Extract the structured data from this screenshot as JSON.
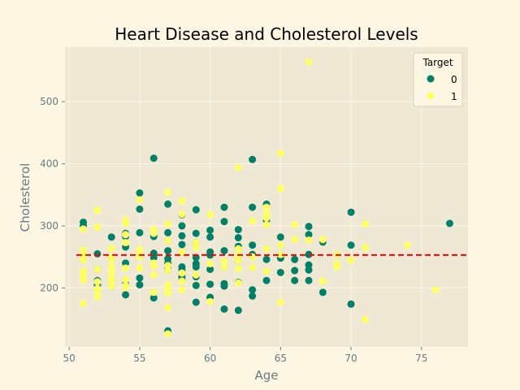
{
  "chart_data": {
    "type": "scatter",
    "title": "Heart Disease and Cholesterol Levels",
    "xlabel": "Age",
    "ylabel": "Cholesterol",
    "xlim": [
      49.7,
      78.3
    ],
    "ylim": [
      105,
      588
    ],
    "xticks": [
      50,
      55,
      60,
      65,
      70,
      75
    ],
    "yticks": [
      200,
      300,
      400,
      500
    ],
    "grid": true,
    "legend": {
      "title": "Target",
      "placement": "top-right"
    },
    "reference_line": {
      "y": 253,
      "color": "#ff0000",
      "style": "dashed"
    },
    "colors": {
      "background": "#fdf6e3",
      "plot_area": "#eee8d5",
      "grid": "#fdf6e3",
      "axis_text": "#657b83"
    },
    "series": [
      {
        "name": "0",
        "color": "#008066",
        "points": [
          [
            51,
            306
          ],
          [
            51,
            300
          ],
          [
            52,
            255
          ],
          [
            52,
            230
          ],
          [
            52,
            212
          ],
          [
            52,
            205
          ],
          [
            53,
            282
          ],
          [
            53,
            203
          ],
          [
            54,
            288
          ],
          [
            54,
            283
          ],
          [
            54,
            266
          ],
          [
            54,
            240
          ],
          [
            54,
            206
          ],
          [
            54,
            189
          ],
          [
            55,
            353
          ],
          [
            55,
            327
          ],
          [
            55,
            289
          ],
          [
            55,
            216
          ],
          [
            55,
            205
          ],
          [
            56,
            409
          ],
          [
            56,
            288
          ],
          [
            56,
            283
          ],
          [
            56,
            256
          ],
          [
            56,
            249
          ],
          [
            56,
            184
          ],
          [
            57,
            335
          ],
          [
            57,
            289
          ],
          [
            57,
            276
          ],
          [
            57,
            260
          ],
          [
            57,
            247
          ],
          [
            57,
            240
          ],
          [
            57,
            232
          ],
          [
            57,
            229
          ],
          [
            57,
            131
          ],
          [
            58,
            318
          ],
          [
            58,
            300
          ],
          [
            58,
            284
          ],
          [
            58,
            270
          ],
          [
            58,
            258
          ],
          [
            58,
            234
          ],
          [
            58,
            229
          ],
          [
            58,
            224
          ],
          [
            58,
            218
          ],
          [
            58,
            213
          ],
          [
            59,
            326
          ],
          [
            59,
            288
          ],
          [
            59,
            273
          ],
          [
            59,
            249
          ],
          [
            59,
            239
          ],
          [
            59,
            234
          ],
          [
            59,
            218
          ],
          [
            59,
            204
          ],
          [
            59,
            177
          ],
          [
            60,
            293
          ],
          [
            60,
            282
          ],
          [
            60,
            258
          ],
          [
            60,
            253
          ],
          [
            60,
            230
          ],
          [
            60,
            206
          ],
          [
            60,
            185
          ],
          [
            61,
            330
          ],
          [
            61,
            307
          ],
          [
            61,
            260
          ],
          [
            61,
            234
          ],
          [
            61,
            207
          ],
          [
            61,
            203
          ],
          [
            61,
            166
          ],
          [
            62,
            294
          ],
          [
            62,
            281
          ],
          [
            62,
            267
          ],
          [
            62,
            263
          ],
          [
            62,
            244
          ],
          [
            62,
            209
          ],
          [
            62,
            164
          ],
          [
            63,
            407
          ],
          [
            63,
            330
          ],
          [
            63,
            269
          ],
          [
            63,
            254
          ],
          [
            63,
            197
          ],
          [
            63,
            187
          ],
          [
            64,
            335
          ],
          [
            64,
            309
          ],
          [
            64,
            246
          ],
          [
            64,
            212
          ],
          [
            65,
            282
          ],
          [
            65,
            254
          ],
          [
            65,
            248
          ],
          [
            65,
            225
          ],
          [
            66,
            246
          ],
          [
            66,
            228
          ],
          [
            66,
            212
          ],
          [
            67,
            299
          ],
          [
            67,
            286
          ],
          [
            67,
            254
          ],
          [
            67,
            237
          ],
          [
            67,
            229
          ],
          [
            67,
            212
          ],
          [
            68,
            274
          ],
          [
            68,
            193
          ],
          [
            69,
            254
          ],
          [
            70,
            322
          ],
          [
            70,
            269
          ],
          [
            70,
            174
          ],
          [
            77,
            304
          ]
        ]
      },
      {
        "name": "1",
        "color": "#ffff66",
        "points": [
          [
            51,
            295
          ],
          [
            51,
            261
          ],
          [
            51,
            256
          ],
          [
            51,
            250
          ],
          [
            51,
            245
          ],
          [
            51,
            227
          ],
          [
            51,
            220
          ],
          [
            51,
            213
          ],
          [
            51,
            175
          ],
          [
            52,
            325
          ],
          [
            52,
            298
          ],
          [
            52,
            230
          ],
          [
            52,
            210
          ],
          [
            52,
            199
          ],
          [
            52,
            196
          ],
          [
            52,
            186
          ],
          [
            53,
            264
          ],
          [
            53,
            250
          ],
          [
            53,
            246
          ],
          [
            53,
            234
          ],
          [
            53,
            226
          ],
          [
            53,
            216
          ],
          [
            53,
            211
          ],
          [
            53,
            203
          ],
          [
            54,
            309
          ],
          [
            54,
            304
          ],
          [
            54,
            286
          ],
          [
            54,
            273
          ],
          [
            54,
            232
          ],
          [
            54,
            214
          ],
          [
            54,
            204
          ],
          [
            54,
            201
          ],
          [
            55,
            342
          ],
          [
            55,
            262
          ],
          [
            55,
            256
          ],
          [
            55,
            250
          ],
          [
            55,
            232
          ],
          [
            56,
            294
          ],
          [
            56,
            288
          ],
          [
            56,
            240
          ],
          [
            56,
            236
          ],
          [
            56,
            221
          ],
          [
            56,
            193
          ],
          [
            57,
            354
          ],
          [
            57,
            303
          ],
          [
            57,
            276
          ],
          [
            57,
            236
          ],
          [
            57,
            229
          ],
          [
            57,
            205
          ],
          [
            57,
            201
          ],
          [
            57,
            196
          ],
          [
            57,
            192
          ],
          [
            57,
            168
          ],
          [
            57,
            126
          ],
          [
            58,
            340
          ],
          [
            58,
            319
          ],
          [
            58,
            258
          ],
          [
            58,
            224
          ],
          [
            58,
            211
          ],
          [
            58,
            197
          ],
          [
            59,
            273
          ],
          [
            59,
            265
          ],
          [
            59,
            221
          ],
          [
            60,
            318
          ],
          [
            60,
            239
          ],
          [
            60,
            178
          ],
          [
            61,
            243
          ],
          [
            61,
            234
          ],
          [
            62,
            394
          ],
          [
            62,
            263
          ],
          [
            62,
            252
          ],
          [
            62,
            244
          ],
          [
            62,
            231
          ],
          [
            62,
            208
          ],
          [
            63,
            308
          ],
          [
            63,
            250
          ],
          [
            63,
            233
          ],
          [
            64,
            330
          ],
          [
            64,
            319
          ],
          [
            64,
            313
          ],
          [
            64,
            302
          ],
          [
            64,
            263
          ],
          [
            64,
            227
          ],
          [
            65,
            417
          ],
          [
            65,
            360
          ],
          [
            65,
            269
          ],
          [
            65,
            254
          ],
          [
            65,
            177
          ],
          [
            66,
            302
          ],
          [
            66,
            278
          ],
          [
            67,
            564
          ],
          [
            67,
            277
          ],
          [
            68,
            278
          ],
          [
            68,
            211
          ],
          [
            69,
            254
          ],
          [
            69,
            239
          ],
          [
            69,
            234
          ],
          [
            70,
            245
          ],
          [
            71,
            303
          ],
          [
            71,
            265
          ],
          [
            71,
            149
          ],
          [
            74,
            269
          ],
          [
            76,
            197
          ]
        ]
      }
    ]
  }
}
